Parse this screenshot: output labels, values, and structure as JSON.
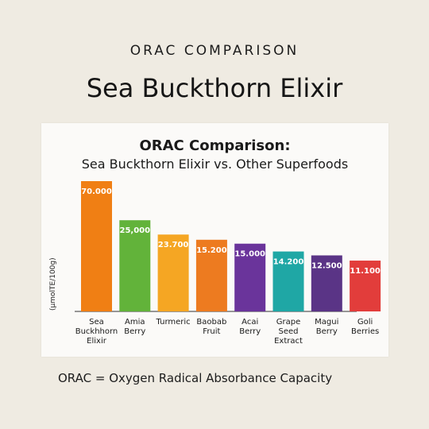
{
  "header": {
    "eyebrow": "ORAC COMPARISON",
    "headline": "Sea Buckthorn Elixir"
  },
  "footnote": "ORAC = Oxygen Radical Absorbance Capacity",
  "chart_data": {
    "type": "bar",
    "title": "ORAC Comparison:",
    "subtitle": "Sea Buckthorn Elixir vs. Other Superfoods",
    "ylabel": "(µmolTE/100g)",
    "categories": [
      [
        "Sea",
        "Buckhhorn",
        "Elixir"
      ],
      [
        "Amia",
        "Berry"
      ],
      [
        "Turmeric"
      ],
      [
        "Baobab",
        "Fruit"
      ],
      [
        "Acai",
        "Berry"
      ],
      [
        "Grape",
        "Seed",
        "Extract"
      ],
      [
        "Magui",
        "Berry"
      ],
      [
        "Goli",
        "Berries"
      ]
    ],
    "values": [
      70000,
      25000,
      23700,
      15200,
      15000,
      14200,
      12500,
      11100
    ],
    "value_labels": [
      "70.000",
      "25,000",
      "23.700",
      "15.200",
      "15.000",
      "14.200",
      "12.500",
      "11.100"
    ],
    "bar_heights_fraction": [
      1.0,
      0.7,
      0.59,
      0.55,
      0.52,
      0.46,
      0.43,
      0.39
    ],
    "colors": [
      "#f07f14",
      "#62b33a",
      "#f5a623",
      "#ed7b20",
      "#6a349b",
      "#1fa7a5",
      "#5a3486",
      "#e23d3b"
    ],
    "grid": false,
    "legend": "none"
  }
}
